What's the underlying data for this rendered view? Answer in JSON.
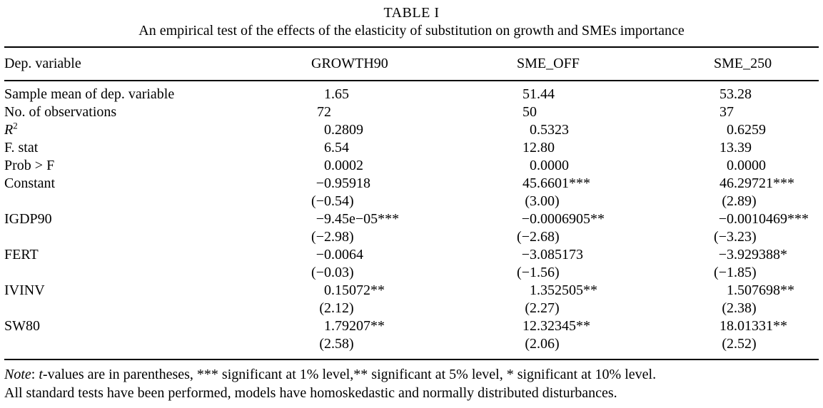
{
  "page": {
    "background_color": "#ffffff",
    "text_color": "#000000"
  },
  "table": {
    "title": "TABLE I",
    "subtitle": "An empirical test of the effects of the elasticity of substitution on growth and SMEs importance",
    "columns": [
      "Dep. variable",
      "GROWTH90",
      "SME_OFF",
      "SME_250"
    ],
    "rows": [
      {
        "label": "Sample mean of dep. variable",
        "cells": [
          "1.65",
          "51.44",
          "53.28"
        ]
      },
      {
        "label": "No. of observations",
        "cells": [
          "72",
          "50",
          "37"
        ]
      },
      {
        "label": "R",
        "label_sup": "2",
        "label_italic": true,
        "cells": [
          "0.2809",
          "0.5323",
          "0.6259"
        ]
      },
      {
        "label": "F. stat",
        "cells": [
          "6.54",
          "12.80",
          "13.39"
        ]
      },
      {
        "label": "Prob > F",
        "cells": [
          "0.0002",
          "0.0000",
          "0.0000"
        ]
      },
      {
        "label": "Constant",
        "cells": [
          "−0.95918",
          "45.6601***",
          "46.29721***"
        ]
      },
      {
        "label": "",
        "cells": [
          "(−0.54)",
          "(3.00)",
          "(2.89)"
        ]
      },
      {
        "label": "IGDP90",
        "cells": [
          "−9.45e−05***",
          "−0.0006905**",
          "−0.0010469***"
        ]
      },
      {
        "label": "",
        "cells": [
          "(−2.98)",
          "(−2.68)",
          "(−3.23)"
        ]
      },
      {
        "label": "FERT",
        "cells": [
          "−0.0064",
          "−3.085173",
          "−3.929388*"
        ]
      },
      {
        "label": "",
        "cells": [
          "(−0.03)",
          "(−1.56)",
          "(−1.85)"
        ]
      },
      {
        "label": "IVINV",
        "cells": [
          "0.15072**",
          "1.352505**",
          "1.507698**"
        ]
      },
      {
        "label": "",
        "cells": [
          "(2.12)",
          "(2.27)",
          "(2.38)"
        ]
      },
      {
        "label": "SW80",
        "cells": [
          "1.79207**",
          "12.32345**",
          "18.01331**"
        ]
      },
      {
        "label": "",
        "cells": [
          "(2.58)",
          "(2.06)",
          "(2.52)"
        ]
      }
    ]
  },
  "note": {
    "label": "Note",
    "sep": ": ",
    "t": "t",
    "rest": "-values are in parentheses, *** significant at 1% level,** significant at 5% level, * significant at 10% level.",
    "line2": "All standard tests have been performed, models have homoskedastic and normally distributed disturbances."
  }
}
